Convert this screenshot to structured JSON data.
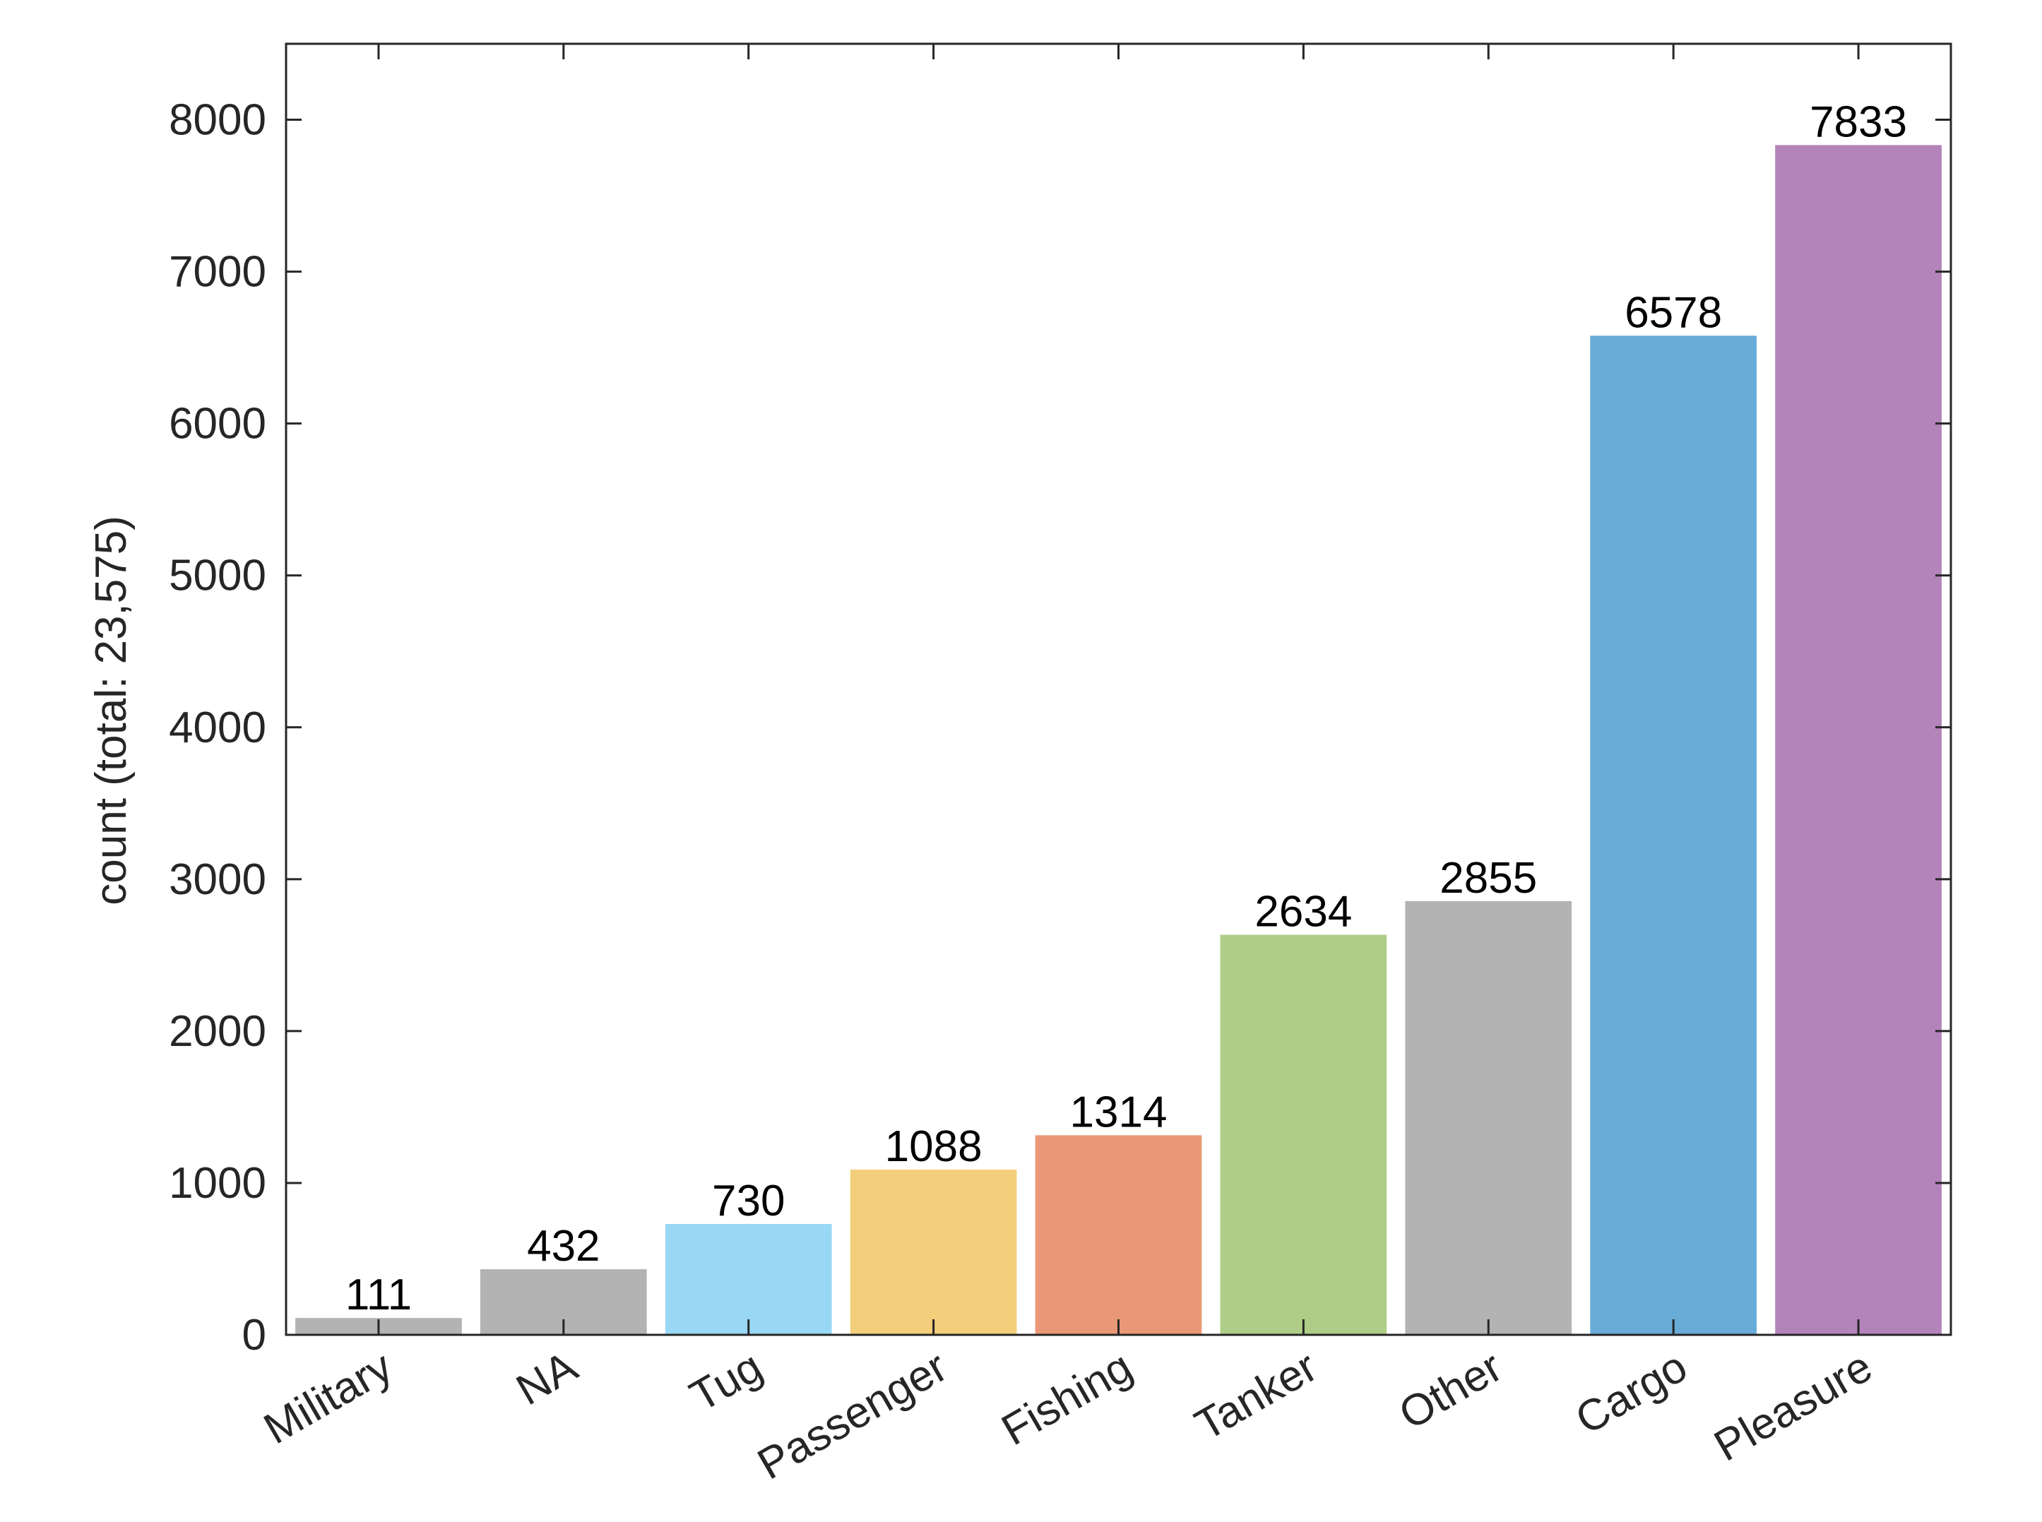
{
  "chart_data": {
    "type": "bar",
    "title": "",
    "xlabel": "",
    "ylabel": "count (total: 23,575)",
    "categories": [
      "Military",
      "NA",
      "Tug",
      "Passenger",
      "Fishing",
      "Tanker",
      "Other",
      "Cargo",
      "Pleasure"
    ],
    "values": [
      111,
      432,
      730,
      1088,
      1314,
      2634,
      2855,
      6578,
      7833
    ],
    "colors": [
      "#b3b3b3",
      "#b3b3b3",
      "#98d8f5",
      "#f4cf7b",
      "#e99877",
      "#afcd86",
      "#b3b3b3",
      "#68acd7",
      "#b384ba"
    ],
    "data_labels": [
      "111",
      "432",
      "730",
      "1088",
      "1314",
      "2634",
      "2855",
      "6578",
      "7833"
    ],
    "ylim": [
      0,
      8500
    ],
    "yticks": [
      0,
      1000,
      2000,
      3000,
      4000,
      5000,
      6000,
      7000,
      8000
    ],
    "ytick_labels": [
      "0",
      "1000",
      "2000",
      "3000",
      "4000",
      "5000",
      "6000",
      "7000",
      "8000"
    ],
    "grid": false,
    "legend": "none"
  }
}
